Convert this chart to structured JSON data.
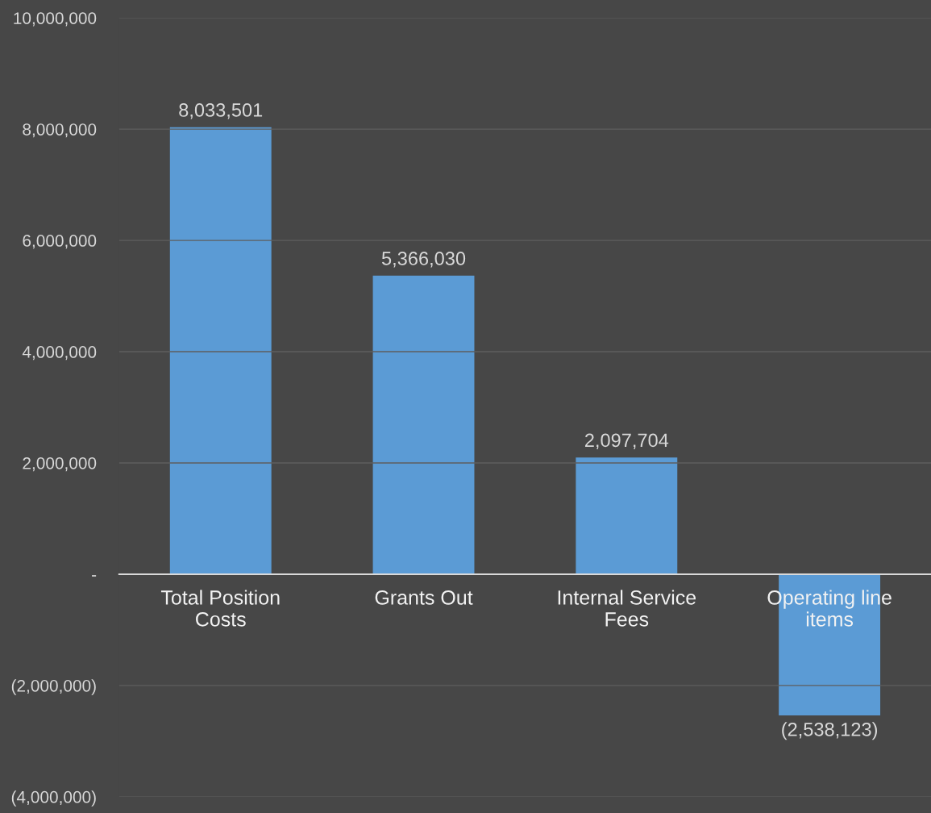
{
  "chart_data": {
    "type": "bar",
    "categories": [
      "Total Position Costs",
      "Grants Out",
      "Internal Service Fees",
      "Operating line items"
    ],
    "values": [
      8033501,
      5366030,
      2097704,
      -2538123
    ],
    "value_labels": [
      "8,033,501",
      "5,366,030",
      "2,097,704",
      "(2,538,123)"
    ],
    "color": "#5b9bd5",
    "ylim": [
      -4000000,
      10000000
    ],
    "yticks": [
      {
        "value": -4000000,
        "label": "(4,000,000)"
      },
      {
        "value": -2000000,
        "label": "(2,000,000)"
      },
      {
        "value": 0,
        "label": "-"
      },
      {
        "value": 2000000,
        "label": "2,000,000"
      },
      {
        "value": 4000000,
        "label": "4,000,000"
      },
      {
        "value": 6000000,
        "label": "6,000,000"
      },
      {
        "value": 8000000,
        "label": "8,000,000"
      },
      {
        "value": 10000000,
        "label": "10,000,000"
      }
    ],
    "grid": "y",
    "legend": false
  }
}
